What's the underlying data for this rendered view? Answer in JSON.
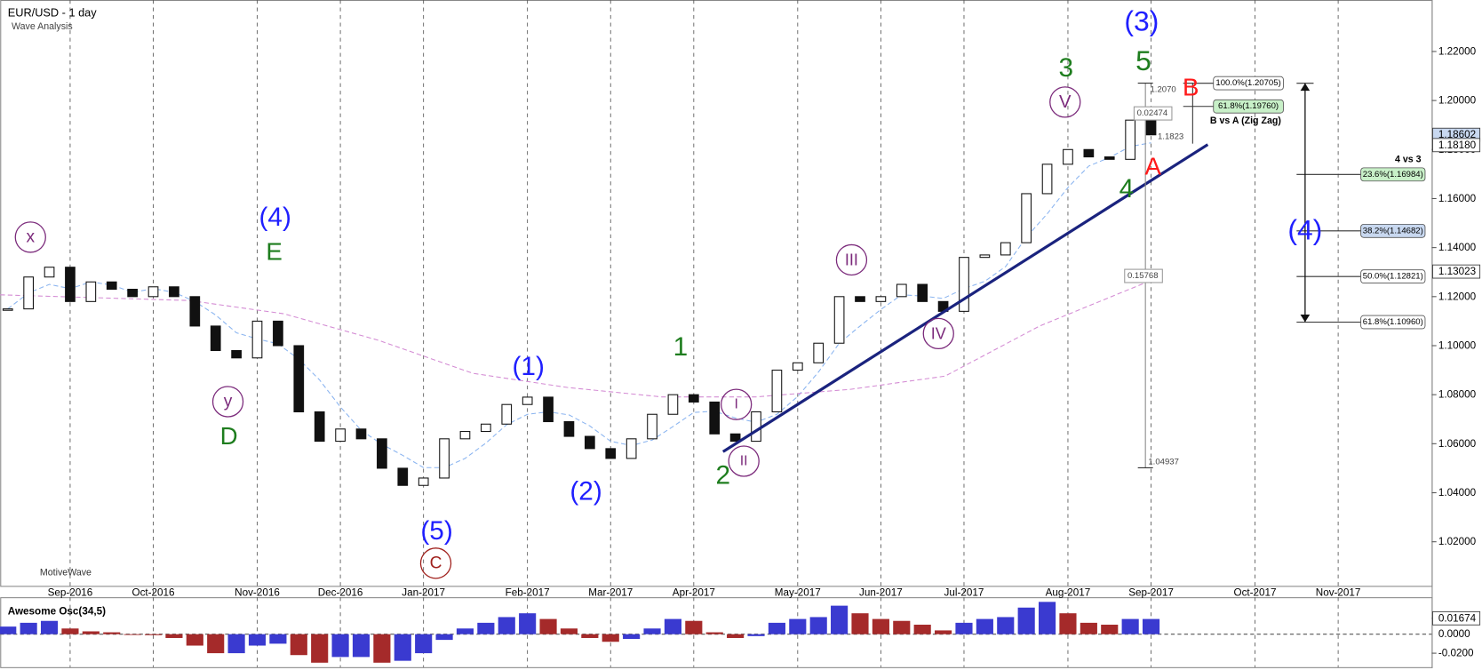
{
  "header": {
    "title": "EUR/USD - 1 day",
    "subtitle": "Wave Analysis",
    "watermark": "MotiveWave"
  },
  "chart_data": [
    {
      "type": "candlestick",
      "categories": [
        null,
        null,
        null,
        "Sep-2016",
        null,
        null,
        null,
        "Oct-2016",
        null,
        null,
        null,
        null,
        "Nov-2016",
        null,
        null,
        null,
        "Dec-2016",
        null,
        null,
        null,
        "Jan-2017",
        null,
        null,
        null,
        null,
        "Feb-2017",
        null,
        null,
        null,
        "Mar-2017",
        null,
        null,
        null,
        "Apr-2017",
        null,
        null,
        null,
        null,
        "May-2017",
        null,
        null,
        null,
        "Jun-2017",
        null,
        null,
        null,
        "Jul-2017",
        null,
        null,
        null,
        null,
        "Aug-2017",
        null,
        null,
        null,
        "Sep-2017",
        null,
        null,
        null,
        null,
        "Oct-2017",
        null,
        null,
        null,
        "Nov-2017",
        null,
        null,
        null
      ],
      "values": [
        1.115,
        1.128,
        1.132,
        1.118,
        1.126,
        1.123,
        1.12,
        1.124,
        1.12,
        1.108,
        1.098,
        1.095,
        1.11,
        1.1,
        1.073,
        1.061,
        1.066,
        1.062,
        1.05,
        1.043,
        1.046,
        1.062,
        1.065,
        1.068,
        1.076,
        1.079,
        1.069,
        1.063,
        1.058,
        1.054,
        1.062,
        1.072,
        1.08,
        1.077,
        1.064,
        1.061,
        1.073,
        1.09,
        1.093,
        1.101,
        1.12,
        1.118,
        1.12,
        1.125,
        1.118,
        1.114,
        1.136,
        1.137,
        1.142,
        1.162,
        1.174,
        1.18,
        1.177,
        1.176,
        1.192,
        1.186,
        null,
        null,
        null,
        null,
        null,
        null,
        null,
        null,
        null,
        null,
        null,
        null
      ],
      "up_color": "#ffffff",
      "down_color": "#111111",
      "ylim": [
        1.002,
        1.241
      ],
      "yticks": [
        {
          "value": 1.02,
          "label": "1.02000"
        },
        {
          "value": 1.04,
          "label": "1.04000"
        },
        {
          "value": 1.06,
          "label": "1.06000"
        },
        {
          "value": 1.08,
          "label": "1.08000"
        },
        {
          "value": 1.1,
          "label": "1.10000"
        },
        {
          "value": 1.12,
          "label": "1.12000"
        },
        {
          "value": 1.14,
          "label": "1.14000"
        },
        {
          "value": 1.16,
          "label": "1.16000"
        },
        {
          "value": 1.18,
          "label": "1.18000"
        },
        {
          "value": 1.2,
          "label": "1.20000"
        },
        {
          "value": 1.22,
          "label": "1.22000"
        }
      ],
      "price_labels": [
        1.18602,
        {
          "value": 1.1818,
          "label": "1.18180"
        },
        1.13023
      ],
      "annotations": [
        {
          "text": "(3)",
          "color": "#1f1fff"
        },
        {
          "text": "5",
          "color": "#1e7d1e"
        },
        {
          "text": "3",
          "color": "#1e7d1e"
        },
        {
          "text": "V",
          "color": "#7b2a7b"
        },
        {
          "text": "B",
          "color": "#ff1a1a"
        },
        {
          "text": "A",
          "color": "#ff1a1a"
        },
        {
          "text": "4",
          "color": "#1e7d1e"
        },
        {
          "text": "(4)",
          "color": "#1f1fff"
        },
        {
          "text": "E",
          "color": "#1e7d1e"
        },
        {
          "text": "x",
          "color": "#7b2a7b"
        },
        {
          "text": "y",
          "color": "#7b2a7b"
        },
        {
          "text": "D",
          "color": "#1e7d1e"
        },
        {
          "text": "(1)",
          "color": "#1f1fff"
        },
        {
          "text": "1",
          "color": "#1e7d1e"
        },
        {
          "text": "(2)",
          "color": "#1f1fff"
        },
        {
          "text": "(5)",
          "color": "#1f1fff"
        },
        {
          "text": "C",
          "color": "#a0201c"
        },
        {
          "text": "I",
          "color": "#7b2a7b"
        },
        {
          "text": "II",
          "color": "#7b2a7b"
        },
        {
          "text": "2",
          "color": "#1e7d1e"
        },
        {
          "text": "III",
          "color": "#7b2a7b"
        },
        {
          "text": "IV",
          "color": "#7b2a7b"
        },
        {
          "text": "(4)",
          "color": "#1f1fff"
        }
      ],
      "b_vs_a": {
        "title": "B vs A (Zig Zag)",
        "levels": [
          {
            "value": 1.20705,
            "label": "100.0%(1.20705)",
            "color": "#ffffff"
          },
          {
            "value": 1.1976,
            "label": "61.8%(1.19760)",
            "color": "#c8f0c8"
          }
        ]
      },
      "four_vs_three": {
        "title": "4 vs 3",
        "levels": [
          {
            "value": 1.16984,
            "label": "23.6%(1.16984)",
            "color": "#c8f0c8"
          },
          {
            "value": 1.14682,
            "label": "38.2%(1.14682)",
            "color": "#c8d8f0"
          },
          {
            "value": 1.12821,
            "label": "50.0%(1.12821)",
            "color": "#ffffff"
          },
          {
            "value": 1.1096,
            "label": "61.8%(1.10960)",
            "color": "#ffffff"
          }
        ]
      },
      "measure_labels": [
        "1.2070",
        "0.02474",
        "1.1823",
        "0.15768",
        "1.04937"
      ]
    },
    {
      "type": "bar",
      "title": "Awesome Osc(34,5)",
      "values": [
        0.008,
        0.012,
        0.014,
        0.006,
        0.003,
        0.002,
        0.0,
        -0.001,
        -0.004,
        -0.012,
        -0.02,
        -0.02,
        -0.012,
        -0.01,
        -0.022,
        -0.03,
        -0.024,
        -0.024,
        -0.03,
        -0.028,
        -0.02,
        -0.006,
        0.006,
        0.012,
        0.018,
        0.022,
        0.016,
        0.006,
        -0.004,
        -0.008,
        -0.005,
        0.006,
        0.016,
        0.014,
        0.002,
        -0.004,
        -0.002,
        0.012,
        0.016,
        0.018,
        0.03,
        0.022,
        0.016,
        0.014,
        0.01,
        0.004,
        0.012,
        0.016,
        0.018,
        0.028,
        0.034,
        0.022,
        0.012,
        0.01,
        0.016,
        0.016,
        null,
        null,
        null,
        null,
        null,
        null,
        null,
        null,
        null,
        null,
        null,
        null
      ],
      "up_color": "#3a3ad0",
      "down_color": "#a52a2a",
      "ylim": [
        -0.0347,
        0.0379
      ],
      "yticks": [
        0.01674,
        {
          "value": 0,
          "label": "0.0000"
        },
        {
          "value": -0.02,
          "label": "-0.0200"
        }
      ]
    }
  ]
}
